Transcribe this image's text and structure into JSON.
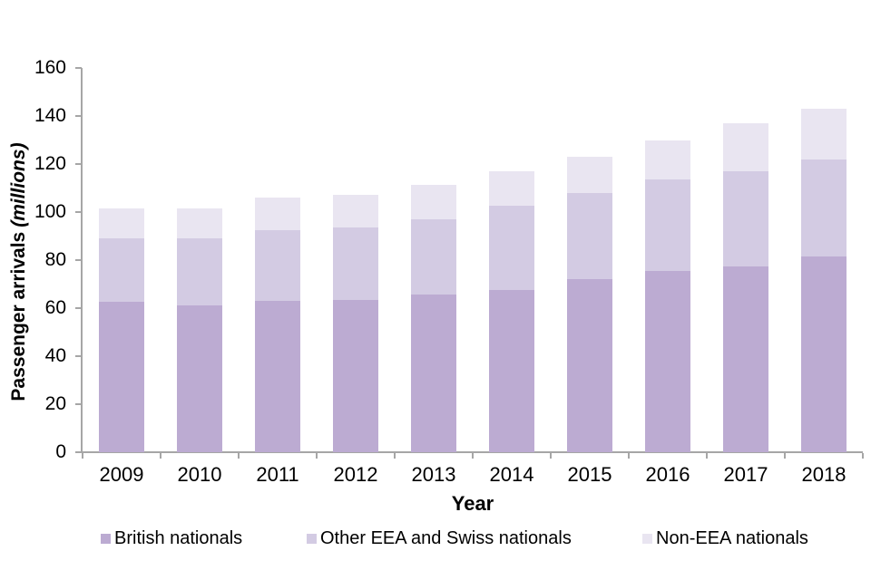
{
  "chart_data": {
    "type": "bar",
    "stacked": true,
    "title": "",
    "xlabel": "Year",
    "ylabel_main": "Passenger arrivals",
    "ylabel_unit": "(millions)",
    "categories": [
      "2009",
      "2010",
      "2011",
      "2012",
      "2013",
      "2014",
      "2015",
      "2016",
      "2017",
      "2018"
    ],
    "series": [
      {
        "name": "British nationals",
        "color": "#bcabd2",
        "values": [
          62.5,
          61.0,
          63.0,
          63.5,
          65.5,
          67.5,
          72.0,
          75.5,
          77.5,
          81.5
        ]
      },
      {
        "name": "Other EEA and Swiss nationals",
        "color": "#d3cbe3",
        "values": [
          26.5,
          28.0,
          29.5,
          30.0,
          31.5,
          35.0,
          36.0,
          38.0,
          39.5,
          40.5
        ]
      },
      {
        "name": "Non-EEA nationals",
        "color": "#e9e5f1",
        "values": [
          12.5,
          12.5,
          13.5,
          13.5,
          14.5,
          14.5,
          15.0,
          16.5,
          20.0,
          21.0
        ]
      }
    ],
    "totals": [
      101.5,
      101.5,
      106.0,
      107.0,
      111.5,
      117.0,
      123.0,
      130.0,
      137.0,
      143.0
    ],
    "ylim": [
      0,
      160
    ],
    "yticks": [
      0,
      20,
      40,
      60,
      80,
      100,
      120,
      140,
      160
    ],
    "grid": false,
    "legend_position": "bottom",
    "axis_color": "#a6a6a6",
    "text_color": "#000000",
    "background_color": "#ffffff"
  }
}
